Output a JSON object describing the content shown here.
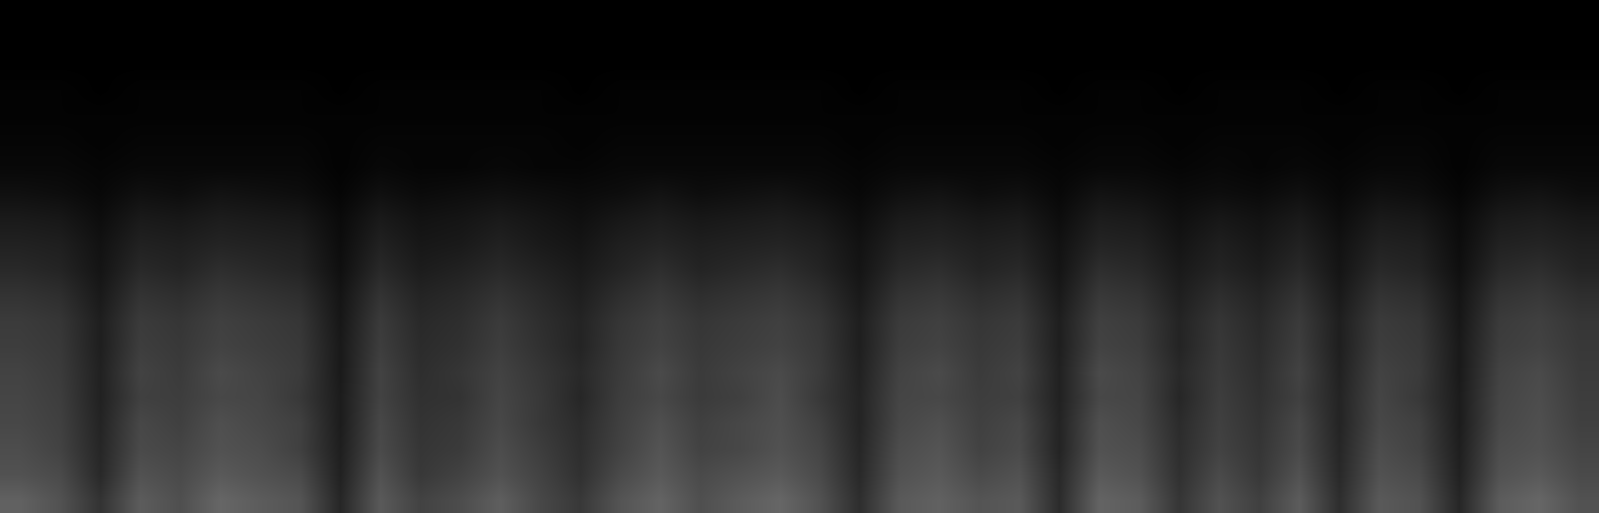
{
  "chart_data": {
    "type": "heatmap",
    "color": "gray",
    "tick_labels": false,
    "grid": false,
    "color_range": [
      0,
      100
    ],
    "cells": [
      [
        0,
        0,
        0,
        0,
        0,
        0,
        0,
        0,
        0,
        0,
        0,
        0,
        0,
        0,
        0,
        0,
        0,
        0,
        0,
        0,
        0,
        0,
        0,
        0,
        0,
        0,
        0,
        0,
        0,
        0,
        0,
        0,
        0,
        0,
        0,
        0,
        0,
        0,
        0,
        0
      ],
      [
        0,
        0,
        0,
        0,
        0,
        0,
        0,
        0,
        0,
        0,
        0,
        0,
        0,
        0,
        0,
        0,
        0,
        0,
        0,
        0,
        0,
        0,
        0,
        0,
        0,
        0,
        0,
        0,
        0,
        0,
        0,
        0,
        0,
        0,
        0,
        0,
        0,
        0,
        0,
        0
      ],
      [
        0,
        0,
        0,
        0,
        0,
        0,
        0,
        0,
        0,
        0,
        0,
        0,
        0,
        0,
        0,
        0,
        0,
        0,
        0,
        0,
        0,
        0,
        0,
        0,
        0,
        0,
        0,
        0,
        0,
        0,
        0,
        0,
        0,
        0,
        0,
        0,
        0,
        0,
        0,
        0
      ],
      [
        1,
        1,
        0,
        1,
        1,
        1,
        1,
        1,
        0,
        1,
        1,
        1,
        1,
        1,
        0,
        1,
        1,
        1,
        1,
        1,
        1,
        0,
        1,
        1,
        1,
        1,
        0,
        1,
        1,
        0,
        1,
        1,
        1,
        0,
        1,
        1,
        0,
        1,
        1,
        1
      ],
      [
        1,
        1,
        1,
        1,
        1,
        1,
        1,
        1,
        1,
        1,
        1,
        1,
        1,
        1,
        1,
        1,
        1,
        1,
        1,
        1,
        1,
        1,
        1,
        1,
        1,
        1,
        1,
        1,
        1,
        1,
        1,
        1,
        1,
        1,
        1,
        1,
        1,
        1,
        1,
        1
      ],
      [
        2,
        2,
        1,
        2,
        2,
        2,
        2,
        2,
        1,
        2,
        2,
        2,
        2,
        2,
        1,
        2,
        2,
        2,
        2,
        2,
        2,
        1,
        2,
        2,
        2,
        2,
        1,
        2,
        2,
        1,
        2,
        2,
        2,
        1,
        2,
        2,
        1,
        2,
        2,
        2
      ],
      [
        3,
        3,
        2,
        3,
        3,
        3,
        3,
        3,
        1,
        3,
        2,
        2,
        3,
        2,
        2,
        3,
        3,
        3,
        3,
        3,
        3,
        2,
        3,
        3,
        3,
        3,
        2,
        3,
        3,
        2,
        3,
        2,
        3,
        2,
        3,
        3,
        1,
        3,
        3,
        3
      ],
      [
        6,
        5,
        3,
        6,
        5,
        7,
        6,
        5,
        2,
        6,
        4,
        5,
        6,
        5,
        4,
        5,
        7,
        5,
        6,
        7,
        5,
        3,
        6,
        7,
        5,
        6,
        3,
        7,
        6,
        4,
        5,
        4,
        6,
        3,
        6,
        5,
        2,
        6,
        7,
        5
      ],
      [
        10,
        9,
        5,
        10,
        9,
        11,
        10,
        9,
        4,
        10,
        7,
        8,
        10,
        8,
        6,
        9,
        11,
        9,
        10,
        11,
        9,
        5,
        10,
        11,
        9,
        10,
        5,
        11,
        10,
        6,
        9,
        7,
        10,
        5,
        10,
        9,
        4,
        10,
        11,
        9
      ],
      [
        13,
        12,
        7,
        13,
        12,
        14,
        13,
        12,
        5,
        13,
        9,
        10,
        13,
        10,
        8,
        12,
        14,
        12,
        13,
        14,
        12,
        7,
        13,
        14,
        12,
        13,
        7,
        14,
        13,
        8,
        12,
        9,
        13,
        7,
        13,
        12,
        5,
        13,
        14,
        12
      ],
      [
        16,
        14,
        8,
        16,
        14,
        18,
        16,
        14,
        6,
        16,
        11,
        13,
        16,
        13,
        10,
        14,
        18,
        14,
        16,
        18,
        14,
        8,
        16,
        18,
        14,
        16,
        8,
        18,
        16,
        10,
        14,
        11,
        16,
        8,
        16,
        14,
        6,
        16,
        18,
        14
      ],
      [
        20,
        18,
        10,
        20,
        18,
        22,
        20,
        18,
        8,
        20,
        14,
        16,
        20,
        16,
        12,
        18,
        22,
        18,
        20,
        22,
        18,
        10,
        20,
        22,
        18,
        20,
        10,
        22,
        20,
        12,
        18,
        14,
        20,
        10,
        20,
        18,
        8,
        20,
        22,
        18
      ],
      [
        23,
        21,
        12,
        23,
        21,
        25,
        23,
        21,
        9,
        23,
        16,
        18,
        23,
        18,
        14,
        21,
        25,
        21,
        23,
        25,
        21,
        12,
        23,
        25,
        21,
        23,
        12,
        25,
        23,
        14,
        21,
        16,
        23,
        12,
        23,
        21,
        9,
        23,
        25,
        21
      ],
      [
        24,
        22,
        12,
        24,
        22,
        26,
        24,
        22,
        10,
        24,
        17,
        19,
        24,
        19,
        14,
        22,
        26,
        22,
        24,
        26,
        22,
        12,
        24,
        26,
        22,
        24,
        12,
        26,
        24,
        14,
        22,
        17,
        24,
        12,
        24,
        22,
        10,
        24,
        26,
        22
      ],
      [
        26,
        23,
        13,
        26,
        23,
        29,
        26,
        23,
        10,
        26,
        18,
        21,
        26,
        21,
        16,
        23,
        29,
        23,
        26,
        29,
        23,
        13,
        26,
        29,
        23,
        26,
        13,
        29,
        26,
        16,
        23,
        18,
        26,
        13,
        26,
        23,
        10,
        26,
        29,
        23
      ],
      [
        27,
        24,
        13,
        25,
        24,
        28,
        27,
        22,
        11,
        26,
        19,
        20,
        27,
        22,
        15,
        24,
        28,
        23,
        25,
        30,
        22,
        14,
        27,
        28,
        24,
        25,
        13,
        28,
        27,
        15,
        24,
        19,
        25,
        14,
        27,
        22,
        11,
        27,
        30,
        24
      ],
      [
        28,
        25,
        14,
        28,
        25,
        31,
        28,
        25,
        11,
        28,
        20,
        22,
        28,
        22,
        17,
        25,
        31,
        25,
        28,
        31,
        25,
        14,
        28,
        31,
        25,
        28,
        14,
        31,
        28,
        17,
        25,
        20,
        28,
        14,
        28,
        25,
        11,
        28,
        31,
        25
      ],
      [
        30,
        26,
        15,
        29,
        27,
        32,
        30,
        25,
        12,
        29,
        21,
        23,
        30,
        24,
        18,
        26,
        33,
        26,
        28,
        32,
        27,
        15,
        30,
        33,
        26,
        29,
        14,
        32,
        30,
        18,
        26,
        21,
        29,
        15,
        30,
        26,
        12,
        30,
        32,
        27
      ],
      [
        32,
        29,
        16,
        32,
        29,
        35,
        32,
        29,
        13,
        32,
        22,
        26,
        32,
        26,
        19,
        29,
        35,
        29,
        32,
        35,
        29,
        16,
        32,
        35,
        29,
        32,
        16,
        35,
        32,
        19,
        29,
        22,
        32,
        16,
        32,
        29,
        13,
        32,
        35,
        29
      ],
      [
        38,
        32,
        20,
        36,
        31,
        40,
        36,
        33,
        15,
        35,
        26,
        30,
        37,
        28,
        22,
        33,
        39,
        31,
        36,
        40,
        32,
        18,
        35,
        38,
        33,
        35,
        17,
        39,
        36,
        21,
        32,
        25,
        36,
        18,
        35,
        32,
        15,
        36,
        40,
        32
      ]
    ]
  }
}
